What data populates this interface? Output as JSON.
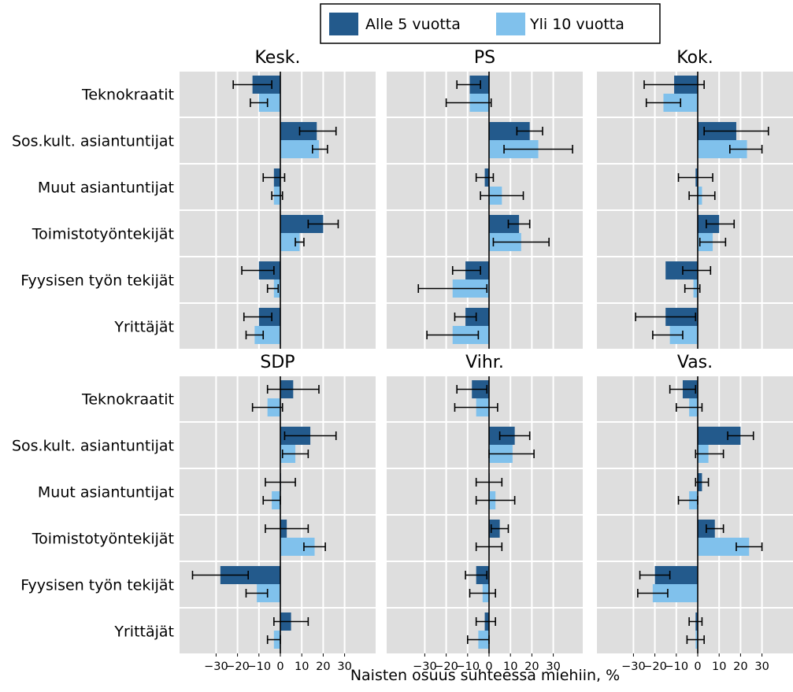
{
  "chart_data": {
    "type": "bar",
    "orientation": "horizontal",
    "xlabel": "Naisten osuus suhteessa miehiin, %",
    "xticks": [
      -30,
      -20,
      -10,
      0,
      10,
      20,
      30
    ],
    "tick_labels": [
      "−30",
      "−20",
      "−10",
      "0",
      "10",
      "20",
      "30"
    ],
    "xlim": [
      -47,
      50
    ],
    "grid": true,
    "legend_position": "top",
    "error_bars": true,
    "categories": [
      "Teknokraatit",
      "Sos.kult. asiantuntijat",
      "Muut asiantuntijat",
      "Toimistotyöntekijät",
      "Fyysisen työn tekijät",
      "Yrittäjät"
    ],
    "series_names": [
      "Alle 5 vuotta",
      "Yli 10 vuotta"
    ],
    "colors": {
      "Alle 5 vuotta": "#235a8c",
      "Yli 10 vuotta": "#80c1ec",
      "panel_background": "#dedede"
    },
    "panels": [
      {
        "title": "Kesk.",
        "series": [
          {
            "name": "Alle 5 vuotta",
            "values": [
              -13,
              17,
              -3,
              20,
              -10,
              -10
            ],
            "ci_low": [
              -22,
              9,
              -8,
              13,
              -18,
              -17
            ],
            "ci_high": [
              -4,
              26,
              2,
              27,
              -3,
              -4
            ]
          },
          {
            "name": "Yli 10 vuotta",
            "values": [
              -10,
              18,
              -3,
              9,
              -3,
              -12
            ],
            "ci_low": [
              -14,
              15,
              -4,
              7,
              -6,
              -16
            ],
            "ci_high": [
              -6,
              22,
              1,
              11,
              -1,
              -8
            ]
          }
        ]
      },
      {
        "title": "PS",
        "series": [
          {
            "name": "Alle 5 vuotta",
            "values": [
              -9,
              19,
              -2,
              14,
              -11,
              -11
            ],
            "ci_low": [
              -15,
              13,
              -6,
              9,
              -17,
              -16
            ],
            "ci_high": [
              -4,
              25,
              2,
              19,
              -4,
              -6
            ]
          },
          {
            "name": "Yli 10 vuotta",
            "values": [
              -9,
              23,
              6,
              15,
              -17,
              -17
            ],
            "ci_low": [
              -20,
              7,
              -4,
              2,
              -33,
              -29
            ],
            "ci_high": [
              1,
              39,
              16,
              28,
              -1,
              -5
            ]
          }
        ]
      },
      {
        "title": "Kok.",
        "series": [
          {
            "name": "Alle 5 vuotta",
            "values": [
              -11,
              18,
              -1,
              10,
              -15,
              -15
            ],
            "ci_low": [
              -25,
              3,
              -9,
              4,
              -7,
              -29
            ],
            "ci_high": [
              3,
              33,
              7,
              17,
              6,
              -1
            ]
          },
          {
            "name": "Yli 10 vuotta",
            "values": [
              -16,
              23,
              2,
              7,
              -2,
              -13
            ],
            "ci_low": [
              -24,
              15,
              -4,
              1,
              -6,
              -21
            ],
            "ci_high": [
              -8,
              30,
              8,
              13,
              1,
              -7
            ]
          }
        ]
      },
      {
        "title": "SDP",
        "series": [
          {
            "name": "Alle 5 vuotta",
            "values": [
              6,
              14,
              0,
              3,
              -28,
              5
            ],
            "ci_low": [
              -6,
              2,
              -7,
              -7,
              -41,
              -3
            ],
            "ci_high": [
              18,
              26,
              7,
              13,
              -15,
              13
            ]
          },
          {
            "name": "Yli 10 vuotta",
            "values": [
              -6,
              7,
              -4,
              16,
              -11,
              -3
            ],
            "ci_low": [
              -13,
              1,
              -8,
              11,
              -16,
              -6
            ],
            "ci_high": [
              1,
              13,
              0,
              21,
              -6,
              0
            ]
          }
        ]
      },
      {
        "title": "Vihr.",
        "series": [
          {
            "name": "Alle 5 vuotta",
            "values": [
              -8,
              12,
              0,
              5,
              -6,
              -2
            ],
            "ci_low": [
              -15,
              5,
              -6,
              1,
              -11,
              -6
            ],
            "ci_high": [
              -1,
              19,
              6,
              9,
              -1,
              3
            ]
          },
          {
            "name": "Yli 10 vuotta",
            "values": [
              -6,
              11,
              3,
              0,
              -3,
              -5
            ],
            "ci_low": [
              -16,
              0,
              -6,
              -6,
              -9,
              -10
            ],
            "ci_high": [
              4,
              21,
              12,
              6,
              3,
              0
            ]
          }
        ]
      },
      {
        "title": "Vas.",
        "series": [
          {
            "name": "Alle 5 vuotta",
            "values": [
              -7,
              20,
              2,
              8,
              -20,
              -1
            ],
            "ci_low": [
              -13,
              14,
              -1,
              4,
              -27,
              -4
            ],
            "ci_high": [
              -1,
              26,
              5,
              12,
              -13,
              2
            ]
          },
          {
            "name": "Yli 10 vuotta",
            "values": [
              -4,
              5,
              -4,
              24,
              -21,
              -1
            ],
            "ci_low": [
              -10,
              -1,
              -9,
              18,
              -28,
              -5
            ],
            "ci_high": [
              2,
              12,
              0,
              30,
              -14,
              3
            ]
          }
        ]
      }
    ]
  }
}
